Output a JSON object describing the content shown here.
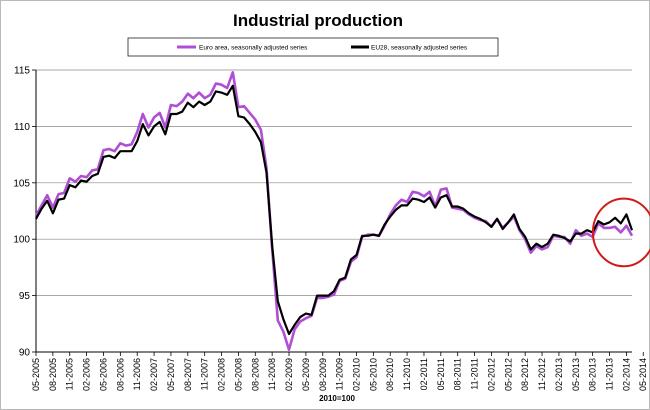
{
  "chart_data": {
    "type": "line",
    "title": "Industrial production",
    "xlabel": "2010=100",
    "ylabel": "",
    "ylim": [
      90,
      115
    ],
    "yticks": [
      90,
      95,
      100,
      105,
      110,
      115
    ],
    "grid": "horizontal",
    "legend_placement": "top",
    "x_tick_labels": [
      "05-2005",
      "08-2005",
      "11-2005",
      "02-2006",
      "05-2006",
      "08-2006",
      "11-2006",
      "02-2007",
      "05-2007",
      "08-2007",
      "11-2007",
      "02-2008",
      "05-2008",
      "08-2008",
      "11-2008",
      "02-2009",
      "05-2009",
      "08-2009",
      "11-2009",
      "02-2010",
      "05-2010",
      "08-2010",
      "11-2010",
      "02-2011",
      "05-2011",
      "08-2011",
      "11-2011",
      "02-2012",
      "05-2012",
      "08-2012",
      "11-2012",
      "02-2013",
      "05-2013",
      "08-2013",
      "11-2013",
      "02-2014",
      "05-2014"
    ],
    "series": [
      {
        "name": "Euro area, seasonally adjusted series",
        "color": "#b04fd6",
        "values": [
          102.1,
          103.0,
          103.9,
          102.8,
          104.0,
          104.1,
          105.4,
          105.1,
          105.6,
          105.5,
          106.1,
          106.2,
          107.9,
          108.0,
          107.8,
          108.5,
          108.3,
          108.4,
          109.5,
          111.1,
          109.9,
          110.8,
          111.2,
          109.9,
          111.9,
          111.8,
          112.2,
          112.9,
          112.5,
          113.0,
          112.5,
          112.8,
          113.8,
          113.7,
          113.4,
          114.8,
          111.7,
          111.8,
          111.2,
          110.6,
          109.7,
          106.3,
          99.1,
          92.8,
          91.8,
          90.2,
          92.0,
          92.7,
          93.0,
          93.2,
          94.8,
          94.8,
          94.9,
          95.1,
          96.3,
          96.5,
          98.0,
          98.4,
          100.2,
          100.4,
          100.4,
          100.3,
          101.2,
          102.2,
          103.0,
          103.5,
          103.3,
          104.2,
          104.1,
          103.8,
          104.2,
          102.9,
          104.4,
          104.5,
          102.8,
          102.7,
          102.6,
          102.2,
          101.9,
          101.7,
          101.6,
          101.1,
          101.8,
          101.0,
          101.5,
          102.0,
          100.8,
          100.0,
          98.8,
          99.4,
          99.1,
          99.3,
          100.3,
          100.2,
          100.2,
          99.6,
          100.8,
          100.3,
          100.5,
          100.2,
          101.4,
          101.0,
          101.0,
          101.1,
          100.6,
          101.2,
          100.3
        ]
      },
      {
        "name": "EU28, seasonally adjusted series",
        "color": "#000000",
        "values": [
          101.8,
          102.7,
          103.4,
          102.3,
          103.5,
          103.6,
          104.8,
          104.6,
          105.2,
          105.1,
          105.6,
          105.8,
          107.3,
          107.4,
          107.2,
          107.8,
          107.8,
          107.8,
          108.7,
          110.2,
          109.2,
          110.0,
          110.4,
          109.3,
          111.1,
          111.1,
          111.3,
          112.1,
          111.7,
          112.2,
          111.9,
          112.2,
          113.1,
          113.0,
          112.8,
          113.6,
          110.9,
          110.8,
          110.2,
          109.5,
          108.6,
          105.9,
          99.4,
          94.5,
          92.9,
          91.6,
          92.4,
          93.1,
          93.4,
          93.3,
          95.0,
          95.0,
          95.0,
          95.4,
          96.4,
          96.6,
          98.2,
          98.6,
          100.3,
          100.3,
          100.4,
          100.3,
          101.3,
          102.0,
          102.6,
          103.0,
          103.0,
          103.6,
          103.5,
          103.3,
          103.7,
          102.8,
          103.7,
          103.9,
          102.9,
          102.9,
          102.7,
          102.3,
          102.0,
          101.8,
          101.5,
          101.1,
          101.8,
          100.9,
          101.5,
          102.2,
          100.9,
          100.2,
          99.1,
          99.6,
          99.3,
          99.6,
          100.4,
          100.3,
          100.1,
          99.8,
          100.5,
          100.5,
          100.8,
          100.6,
          101.6,
          101.3,
          101.5,
          101.9,
          101.4,
          102.2,
          100.8
        ]
      }
    ],
    "annotation": {
      "type": "circle",
      "color": "#d21a1a",
      "x_from_index": 101,
      "x_to_index": 107,
      "y_from": 97.6,
      "y_to": 103.6
    }
  }
}
